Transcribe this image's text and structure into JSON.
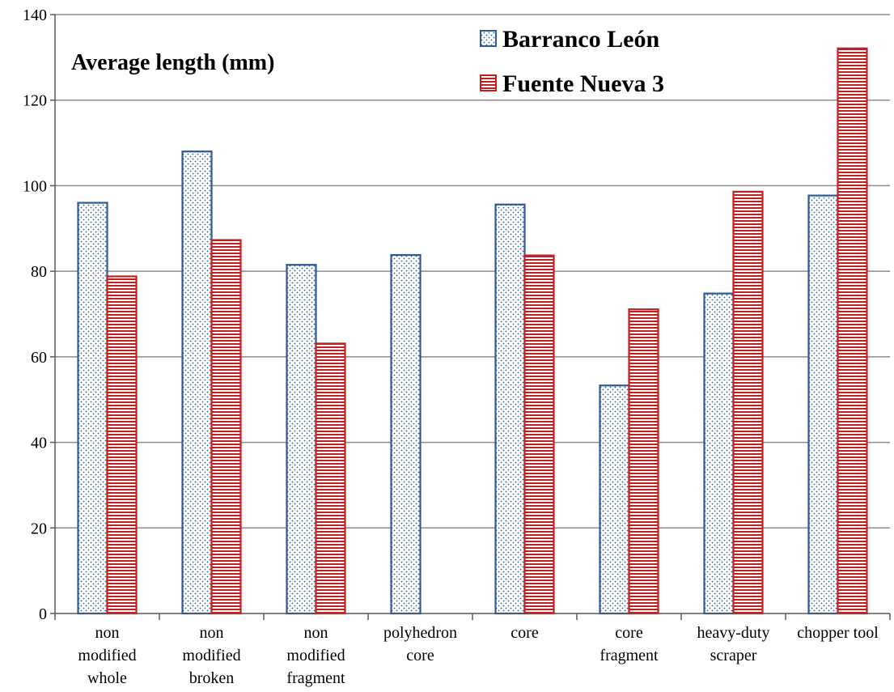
{
  "chart_data": {
    "type": "bar",
    "title": "Average length (mm)",
    "xlabel": "",
    "ylabel": "",
    "ylim": [
      0,
      140
    ],
    "yticks": [
      0,
      20,
      40,
      60,
      80,
      100,
      120,
      140
    ],
    "grid": true,
    "legend_position": "top-right",
    "categories": [
      [
        "non",
        "modified",
        "whole"
      ],
      [
        "non",
        "modified",
        "broken"
      ],
      [
        "non",
        "modified",
        "fragment"
      ],
      [
        "polyhedron",
        "core"
      ],
      [
        "core"
      ],
      [
        "core",
        "fragment"
      ],
      [
        "heavy-duty",
        "scraper"
      ],
      [
        "chopper tool"
      ]
    ],
    "series": [
      {
        "name": "Barranco León",
        "values": [
          96,
          108,
          81.5,
          83.8,
          95.6,
          53.3,
          74.8,
          97.7
        ],
        "color": "#2e5a94",
        "pattern": "dotted"
      },
      {
        "name": "Fuente Nueva 3",
        "values": [
          78.8,
          87.3,
          63.1,
          null,
          83.7,
          71.1,
          98.6,
          132.1
        ],
        "color": "#c41e1e",
        "pattern": "horizontal-stripes"
      }
    ]
  }
}
